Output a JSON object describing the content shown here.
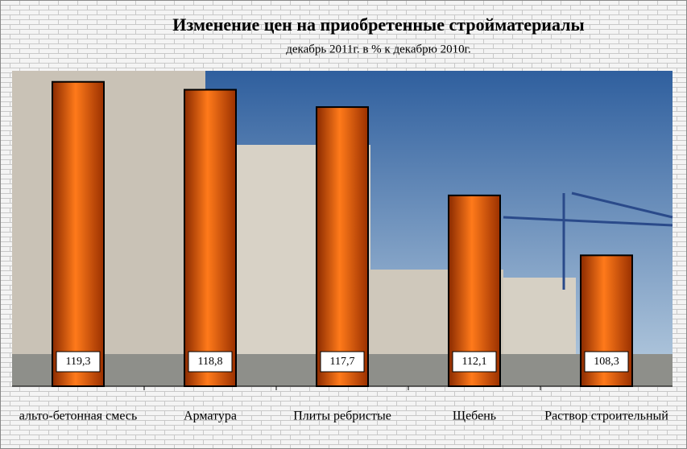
{
  "chart_data": {
    "type": "bar",
    "title": "Изменение цен на приобретенные стройматериалы",
    "subtitle": "декабрь 2011г. в % к декабрю 2010г.",
    "categories": [
      "альто-бетонная смесь",
      "Арматура",
      "Плиты ребристые",
      "Щебень",
      "Раствор строительный"
    ],
    "values": [
      119.3,
      118.8,
      117.7,
      112.1,
      108.3
    ],
    "value_labels": [
      "119,3",
      "118,8",
      "117,7",
      "112,1",
      "108,3"
    ],
    "color": "#e85a0c",
    "ylim": [
      100,
      120
    ]
  }
}
